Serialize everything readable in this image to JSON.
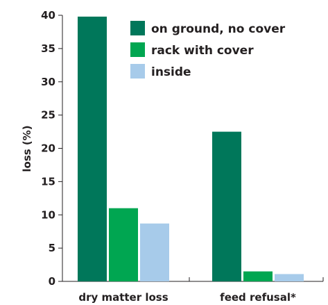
{
  "chart_data": {
    "type": "bar",
    "title": "",
    "xlabel": "",
    "ylabel": "loss (%)",
    "ylim": [
      0,
      40
    ],
    "yticks": [
      0,
      5,
      10,
      15,
      20,
      25,
      30,
      35,
      40
    ],
    "grid": false,
    "legend_position": "top-right",
    "categories": [
      "dry matter loss",
      "feed refusal*"
    ],
    "series": [
      {
        "name": "on ground, no cover",
        "color": "#00775a",
        "values": [
          39.8,
          22.5
        ]
      },
      {
        "name": "rack with cover",
        "color": "#00a651",
        "values": [
          11.0,
          1.5
        ]
      },
      {
        "name": "inside",
        "color": "#a7cbea",
        "values": [
          8.7,
          1.1
        ]
      }
    ]
  }
}
